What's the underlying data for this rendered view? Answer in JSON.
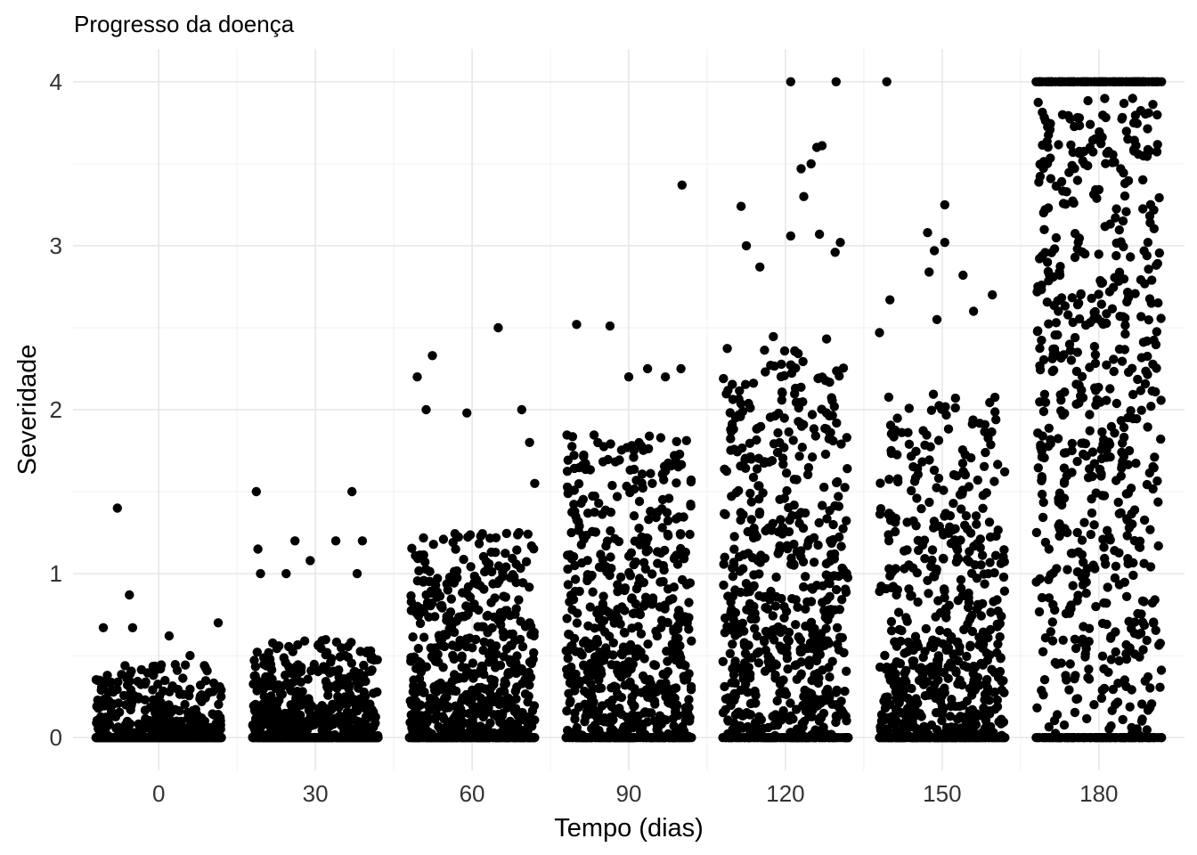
{
  "chart_data": {
    "type": "scatter",
    "title": "Progresso da doença",
    "xlabel": "Tempo (dias)",
    "ylabel": "Severidade",
    "xlim": [
      -16.4,
      196.4
    ],
    "ylim": [
      -0.2,
      4.2
    ],
    "x_ticks": [
      0,
      30,
      60,
      90,
      120,
      150,
      180
    ],
    "y_ticks": [
      0,
      1,
      2,
      3,
      4
    ],
    "grid": true,
    "jitter_width_days": 12,
    "marker_color": "#000000",
    "groups": [
      {
        "x": 0,
        "n": 600,
        "zero_fraction": 0.55,
        "spread": 0.16,
        "upper_band": 0.45,
        "outliers": [
          [
            -7.9,
            1.4
          ],
          [
            -5.6,
            0.87
          ],
          [
            -10.6,
            0.67
          ],
          [
            -5,
            0.67
          ],
          [
            2,
            0.62
          ],
          [
            11.4,
            0.7
          ],
          [
            6,
            0.5
          ]
        ]
      },
      {
        "x": 30,
        "n": 620,
        "zero_fraction": 0.4,
        "spread": 0.22,
        "upper_band": 0.6,
        "outliers": [
          [
            -11.3,
            1.5
          ],
          [
            -11,
            1.15
          ],
          [
            -10.5,
            1.0
          ],
          [
            -5.6,
            1.0
          ],
          [
            -3.9,
            1.2
          ],
          [
            -1,
            1.08
          ],
          [
            3.9,
            1.2
          ],
          [
            7,
            1.5
          ],
          [
            9,
            1.2
          ],
          [
            8,
            1.0
          ]
        ]
      },
      {
        "x": 60,
        "n": 640,
        "zero_fraction": 0.22,
        "spread": 0.5,
        "upper_band": 1.25,
        "outliers": [
          [
            -10.5,
            2.2
          ],
          [
            -7.6,
            2.33
          ],
          [
            -8.8,
            2.0
          ],
          [
            -1,
            1.98
          ],
          [
            5,
            2.5
          ],
          [
            9.5,
            2.0
          ],
          [
            11,
            1.8
          ],
          [
            12,
            1.55
          ]
        ]
      },
      {
        "x": 90,
        "n": 650,
        "zero_fraction": 0.15,
        "spread": 0.9,
        "upper_band": 1.85,
        "outliers": [
          [
            -10,
            2.52
          ],
          [
            -3.6,
            2.51
          ],
          [
            3.6,
            2.25
          ],
          [
            10,
            2.25
          ],
          [
            10.2,
            3.37
          ],
          [
            7,
            2.2
          ],
          [
            0,
            2.2
          ]
        ]
      },
      {
        "x": 120,
        "n": 660,
        "zero_fraction": 0.12,
        "spread": 1.1,
        "upper_band": 2.45,
        "outliers": [
          [
            1,
            4.0
          ],
          [
            9.7,
            4.0
          ],
          [
            7,
            3.61
          ],
          [
            6,
            3.6
          ],
          [
            3,
            3.47
          ],
          [
            4.9,
            3.5
          ],
          [
            -8.5,
            3.24
          ],
          [
            3.5,
            3.3
          ],
          [
            -7.5,
            3.0
          ],
          [
            1,
            3.06
          ],
          [
            6.5,
            3.07
          ],
          [
            10.5,
            3.02
          ],
          [
            -4.9,
            2.87
          ],
          [
            9.5,
            2.96
          ]
        ]
      },
      {
        "x": 150,
        "n": 650,
        "zero_fraction": 0.15,
        "spread": 0.95,
        "upper_band": 2.1,
        "outliers": [
          [
            -10.6,
            4.0
          ],
          [
            -2.8,
            3.08
          ],
          [
            0.5,
            3.25
          ],
          [
            0.5,
            3.02
          ],
          [
            -1.5,
            2.97
          ],
          [
            4,
            2.82
          ],
          [
            -10,
            2.67
          ],
          [
            -2.5,
            2.84
          ],
          [
            6,
            2.6
          ],
          [
            9.6,
            2.7
          ],
          [
            -12,
            2.47
          ],
          [
            -1,
            2.55
          ]
        ]
      },
      {
        "x": 180,
        "n": 700,
        "zero_fraction": 0.08,
        "spread": 1.5,
        "upper_band": 3.9,
        "line_at_max": 4.0,
        "outliers": []
      }
    ]
  }
}
